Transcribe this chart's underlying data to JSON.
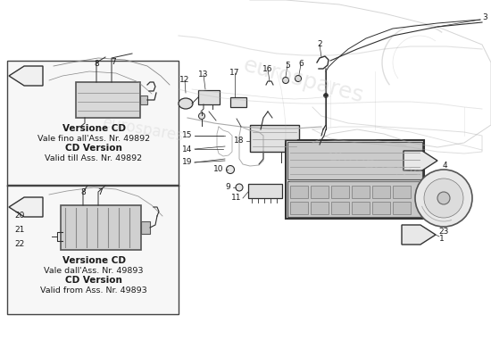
{
  "bg_color": "#ffffff",
  "line_color": "#303030",
  "text_color": "#1a1a1a",
  "light_line": "#aaaaaa",
  "box_bg": "#f5f5f5",
  "component_fill": "#e8e8e8",
  "arrow_fill": "#e0e0e0",
  "box1_text": [
    "Versione CD",
    "Vale fino all'Ass. Nr. 49892",
    "CD Version",
    "Valid till Ass. Nr. 49892"
  ],
  "box2_text": [
    "Versione CD",
    "Vale dall'Ass. Nr. 49893",
    "CD Version",
    "Valid from Ass. Nr. 49893"
  ],
  "watermark1": "eurospares",
  "watermark2": "eurospares",
  "watermark3": "eurospares"
}
